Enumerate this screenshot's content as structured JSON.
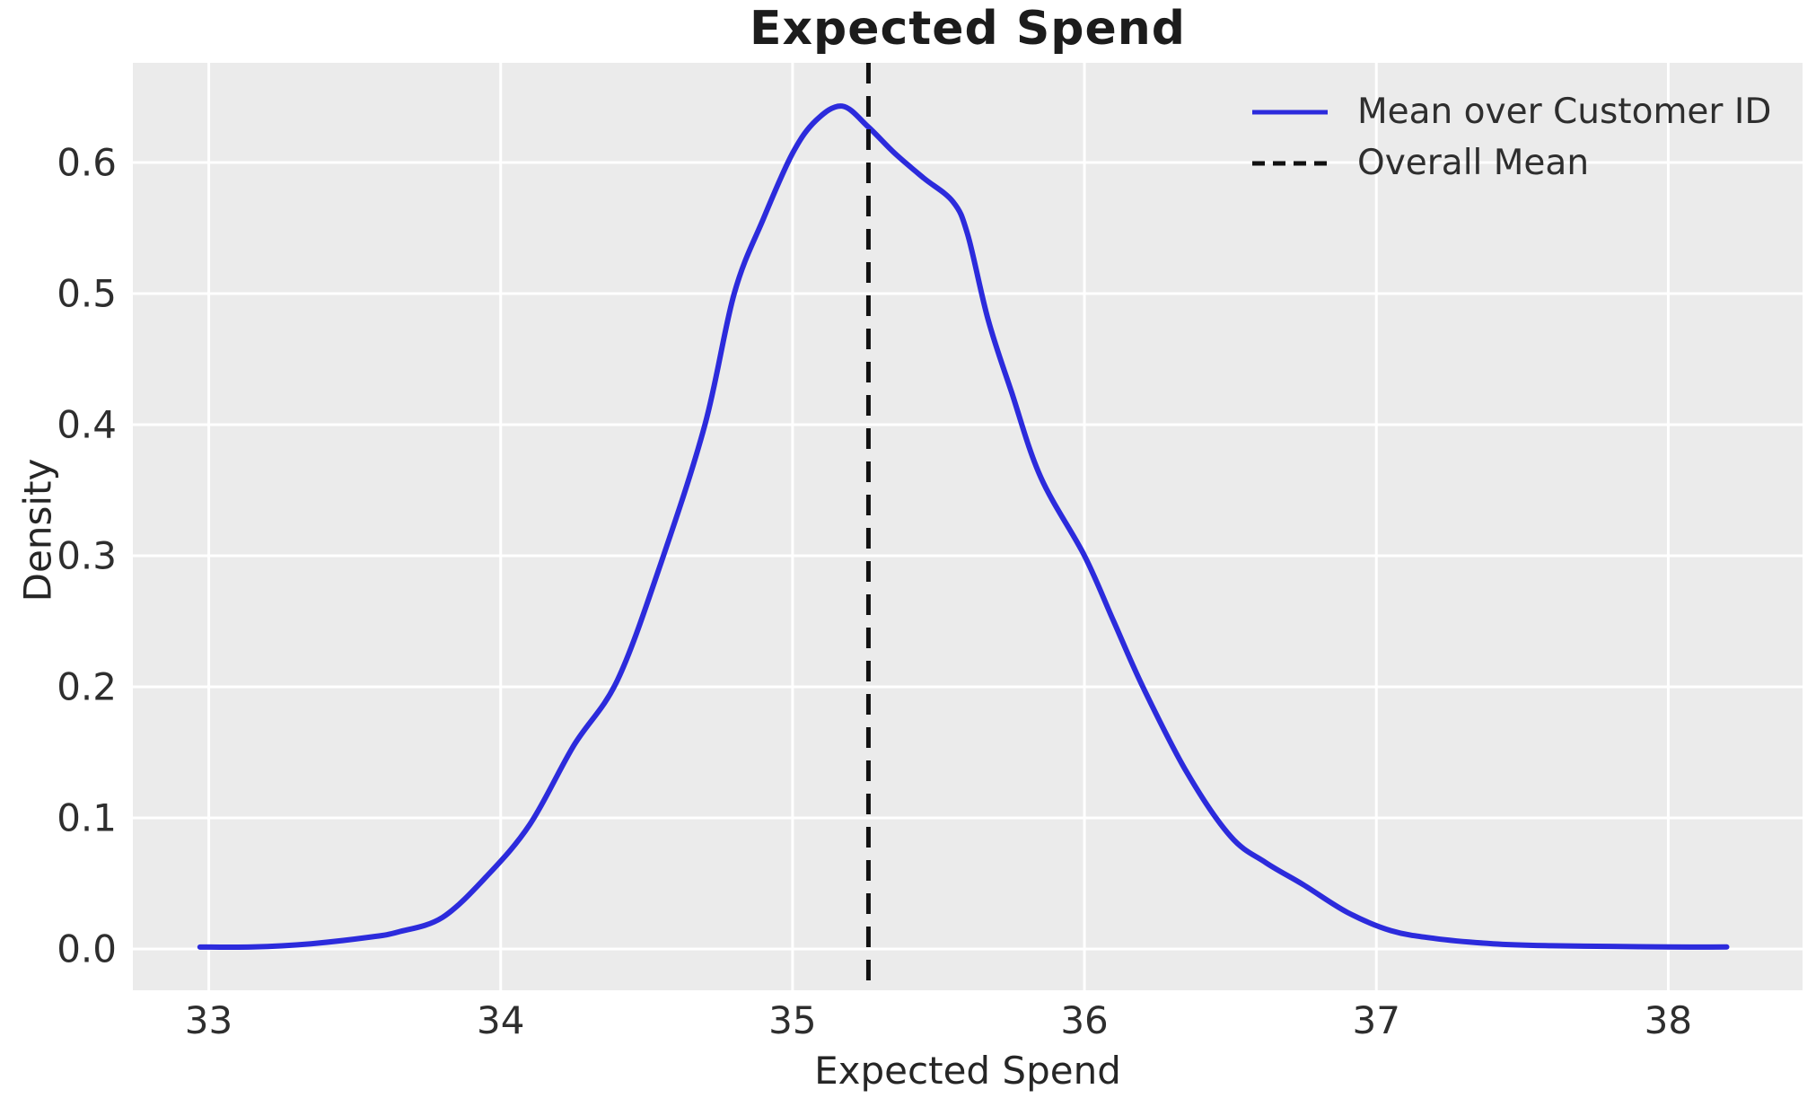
{
  "chart_data": {
    "type": "line",
    "subtype": "kde-density",
    "title": "Expected Spend",
    "xlabel": "Expected Spend",
    "ylabel": "Density",
    "x_ticks": [
      "33",
      "34",
      "35",
      "36",
      "37",
      "38"
    ],
    "x_tick_values": [
      33,
      34,
      35,
      36,
      37,
      38
    ],
    "y_ticks": [
      "0.0",
      "0.1",
      "0.2",
      "0.3",
      "0.4",
      "0.5",
      "0.6"
    ],
    "y_tick_values": [
      0.0,
      0.1,
      0.2,
      0.3,
      0.4,
      0.5,
      0.6
    ],
    "xlim": [
      32.74,
      38.46
    ],
    "ylim": [
      -0.0315,
      0.676
    ],
    "grid": true,
    "legend_position": "upper right",
    "colors": {
      "plot_background": "#ebebeb",
      "grid": "#ffffff",
      "curve": "#2c2bdc",
      "mean_line": "#111111",
      "text": "#262626"
    },
    "legend": {
      "entries": [
        {
          "label": "Mean over Customer ID",
          "style": "solid",
          "color": "#2c2bdc"
        },
        {
          "label": "Overall Mean",
          "style": "dashed",
          "color": "#111111"
        }
      ]
    },
    "overall_mean_line": {
      "x": 35.26,
      "style": "dashed",
      "color": "#111111"
    },
    "series": [
      {
        "name": "Mean over Customer ID",
        "color": "#2c2bdc",
        "points": [
          [
            32.97,
            0.0015
          ],
          [
            33.15,
            0.0015
          ],
          [
            33.35,
            0.004
          ],
          [
            33.55,
            0.009
          ],
          [
            33.65,
            0.013
          ],
          [
            33.8,
            0.024
          ],
          [
            33.95,
            0.055
          ],
          [
            34.1,
            0.095
          ],
          [
            34.25,
            0.155
          ],
          [
            34.4,
            0.205
          ],
          [
            34.55,
            0.295
          ],
          [
            34.7,
            0.4
          ],
          [
            34.8,
            0.5
          ],
          [
            34.9,
            0.557
          ],
          [
            35.0,
            0.607
          ],
          [
            35.08,
            0.632
          ],
          [
            35.17,
            0.643
          ],
          [
            35.26,
            0.627
          ],
          [
            35.35,
            0.607
          ],
          [
            35.45,
            0.588
          ],
          [
            35.55,
            0.57
          ],
          [
            35.6,
            0.545
          ],
          [
            35.67,
            0.48
          ],
          [
            35.75,
            0.425
          ],
          [
            35.85,
            0.36
          ],
          [
            36.0,
            0.3
          ],
          [
            36.1,
            0.25
          ],
          [
            36.2,
            0.2
          ],
          [
            36.35,
            0.135
          ],
          [
            36.5,
            0.086
          ],
          [
            36.62,
            0.066
          ],
          [
            36.75,
            0.049
          ],
          [
            36.9,
            0.028
          ],
          [
            37.05,
            0.014
          ],
          [
            37.2,
            0.008
          ],
          [
            37.4,
            0.004
          ],
          [
            37.6,
            0.0025
          ],
          [
            37.8,
            0.002
          ],
          [
            38.0,
            0.0015
          ],
          [
            38.2,
            0.0015
          ]
        ]
      }
    ]
  }
}
